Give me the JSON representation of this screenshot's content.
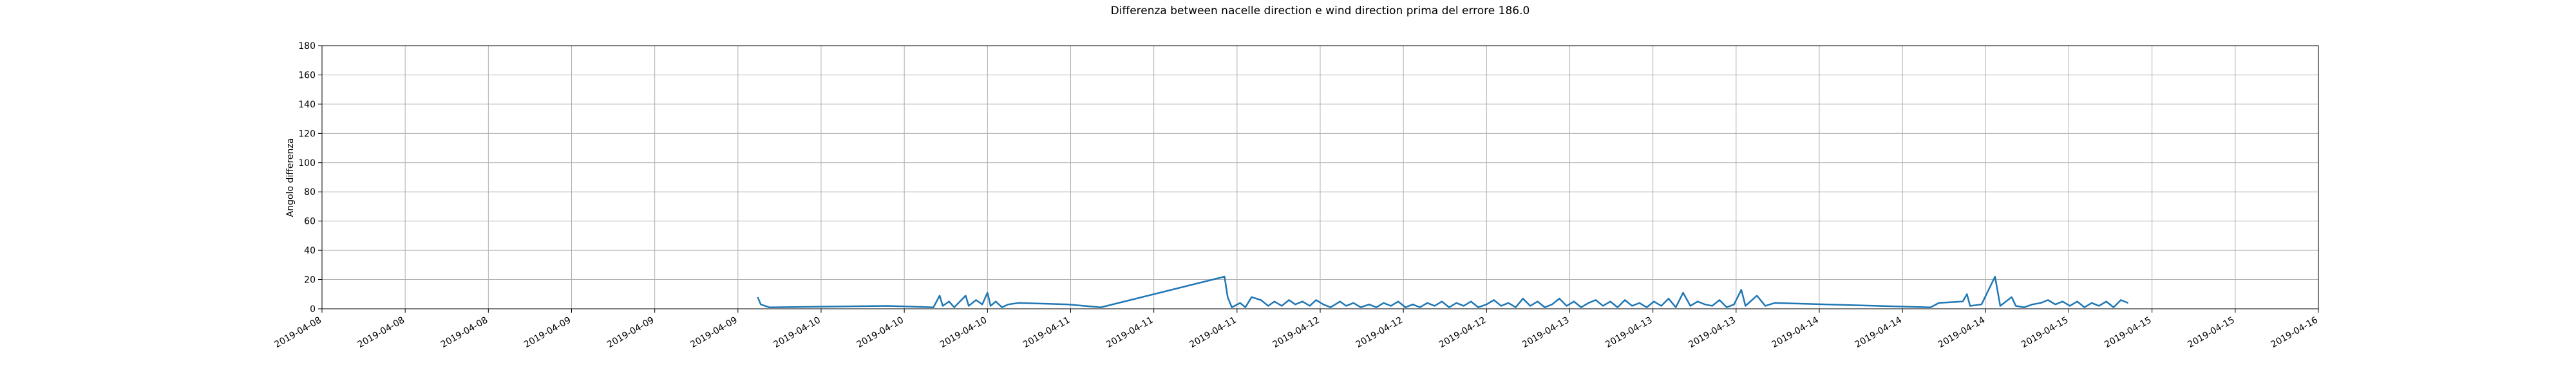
{
  "chart_data": {
    "type": "line",
    "title": "Differenza between nacelle direction e wind direction prima del errore 186.0",
    "y_label": "Angolo differenza",
    "color": "#1f77b4",
    "grid": true,
    "xlim": [
      0,
      192
    ],
    "xticks": [
      {
        "value": 0,
        "label": "2019-04-08"
      },
      {
        "value": 8,
        "label": "2019-04-08"
      },
      {
        "value": 16,
        "label": "2019-04-08"
      },
      {
        "value": 24,
        "label": "2019-04-09"
      },
      {
        "value": 32,
        "label": "2019-04-09"
      },
      {
        "value": 40,
        "label": "2019-04-09"
      },
      {
        "value": 48,
        "label": "2019-04-10"
      },
      {
        "value": 56,
        "label": "2019-04-10"
      },
      {
        "value": 64,
        "label": "2019-04-10"
      },
      {
        "value": 72,
        "label": "2019-04-11"
      },
      {
        "value": 80,
        "label": "2019-04-11"
      },
      {
        "value": 88,
        "label": "2019-04-11"
      },
      {
        "value": 96,
        "label": "2019-04-12"
      },
      {
        "value": 104,
        "label": "2019-04-12"
      },
      {
        "value": 112,
        "label": "2019-04-12"
      },
      {
        "value": 120,
        "label": "2019-04-13"
      },
      {
        "value": 128,
        "label": "2019-04-13"
      },
      {
        "value": 136,
        "label": "2019-04-13"
      },
      {
        "value": 144,
        "label": "2019-04-14"
      },
      {
        "value": 152,
        "label": "2019-04-14"
      },
      {
        "value": 160,
        "label": "2019-04-14"
      },
      {
        "value": 168,
        "label": "2019-04-15"
      },
      {
        "value": 176,
        "label": "2019-04-15"
      },
      {
        "value": 184,
        "label": "2019-04-15"
      },
      {
        "value": 192,
        "label": "2019-04-16"
      }
    ],
    "ylim": [
      0,
      180
    ],
    "yticks": [
      0,
      20,
      40,
      60,
      80,
      100,
      120,
      140,
      160,
      180
    ],
    "x": [
      41.9,
      42.2,
      43.0,
      54.4,
      58.8,
      59.4,
      59.7,
      60.3,
      60.8,
      61.9,
      62.2,
      62.9,
      63.5,
      64.0,
      64.3,
      64.8,
      65.4,
      66.0,
      67.0,
      71.7,
      74.9,
      86.8,
      87.1,
      87.5,
      88.3,
      88.8,
      89.4,
      90.3,
      91.0,
      91.6,
      92.3,
      93.0,
      93.6,
      94.3,
      95.0,
      95.6,
      96.3,
      97.0,
      97.9,
      98.5,
      99.2,
      99.9,
      100.7,
      101.4,
      102.1,
      102.8,
      103.5,
      104.2,
      104.9,
      105.6,
      106.3,
      107.0,
      107.7,
      108.4,
      109.1,
      109.8,
      110.5,
      111.2,
      112.0,
      112.7,
      113.4,
      114.1,
      114.8,
      115.5,
      116.2,
      116.9,
      117.6,
      118.3,
      119.0,
      119.7,
      120.4,
      121.1,
      121.8,
      122.5,
      123.2,
      123.9,
      124.6,
      125.3,
      126.0,
      126.7,
      127.4,
      128.1,
      128.8,
      129.5,
      130.2,
      130.9,
      131.6,
      132.3,
      133.0,
      133.7,
      134.4,
      135.1,
      135.8,
      136.5,
      136.9,
      138.0,
      138.8,
      139.7,
      154.7,
      155.5,
      157.8,
      158.2,
      158.5,
      159.6,
      160.9,
      161.4,
      162.5,
      162.9,
      163.7,
      164.5,
      165.3,
      166.0,
      166.7,
      167.4,
      168.1,
      168.8,
      169.5,
      170.2,
      170.9,
      171.6,
      172.3,
      173.0,
      173.7
    ],
    "values": [
      8,
      3,
      1,
      2,
      1,
      9,
      2,
      5,
      1,
      9,
      2,
      6,
      3,
      11,
      2,
      5,
      1,
      3,
      4,
      3,
      1,
      22,
      8,
      1,
      4,
      1,
      8,
      6,
      2,
      5,
      2,
      6,
      3,
      5,
      2,
      6,
      3,
      1,
      5,
      2,
      4,
      1,
      3,
      1,
      4,
      2,
      5,
      1,
      3,
      1,
      4,
      2,
      5,
      1,
      4,
      2,
      5,
      1,
      3,
      6,
      2,
      4,
      1,
      7,
      2,
      5,
      1,
      3,
      7,
      2,
      5,
      1,
      4,
      6,
      2,
      5,
      1,
      6,
      2,
      4,
      1,
      5,
      2,
      7,
      1,
      11,
      2,
      5,
      3,
      2,
      6,
      1,
      3,
      13,
      2,
      9,
      2,
      4,
      1,
      4,
      5,
      10,
      2,
      3,
      22,
      2,
      8,
      2,
      1,
      3,
      4,
      6,
      3,
      5,
      2,
      5,
      1,
      4,
      2,
      5,
      1,
      6,
      4
    ]
  }
}
